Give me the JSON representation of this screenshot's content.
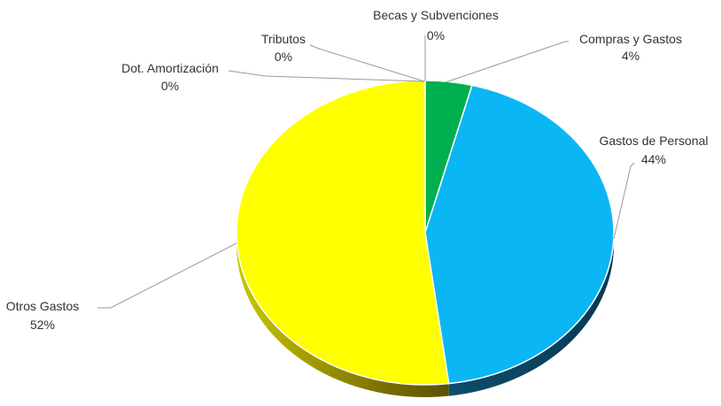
{
  "chart_data": {
    "type": "pie",
    "style": "3d",
    "legend": "none",
    "slices": [
      {
        "name": "Becas y Subvenciones",
        "value": 0,
        "label": "0%",
        "color": "#a5a5a5"
      },
      {
        "name": "Compras y Gastos",
        "value": 4,
        "label": "4%",
        "color": "#00b050"
      },
      {
        "name": "Gastos de Personal",
        "value": 44,
        "label": "44%",
        "color": "#0bb6f4"
      },
      {
        "name": "Otros Gastos",
        "value": 52,
        "label": "52%",
        "color": "#ffff00"
      },
      {
        "name": "Dot. Amortización",
        "value": 0,
        "label": "0%",
        "color": "#7f7f7f"
      },
      {
        "name": "Tributos",
        "value": 0,
        "label": "0%",
        "color": "#bfbfbf"
      }
    ]
  }
}
